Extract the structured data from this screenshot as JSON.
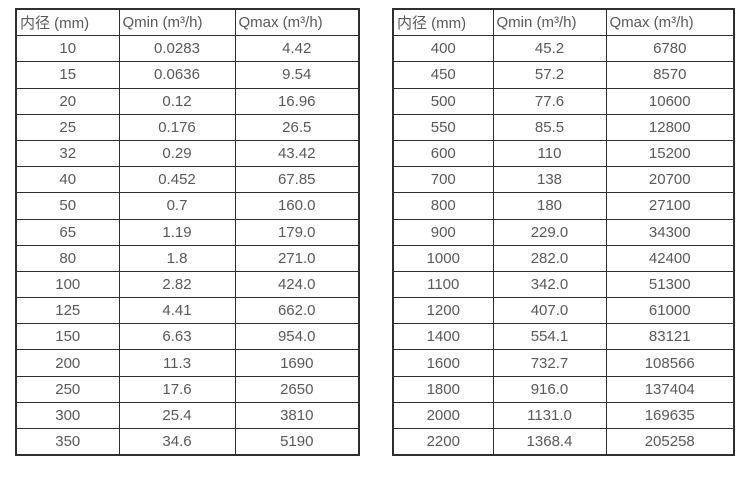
{
  "page": {
    "background": "#ffffff",
    "border_color": "#2f2f2f",
    "text_color": "#595959"
  },
  "tables": [
    {
      "name": "flow-spec-table-small-diameters",
      "columns": [
        "内径 (mm)",
        "Qmin (m³/h)",
        "Qmax (m³/h)"
      ],
      "rows": [
        [
          "10",
          "0.0283",
          "4.42"
        ],
        [
          "15",
          "0.0636",
          "9.54"
        ],
        [
          "20",
          "0.12",
          "16.96"
        ],
        [
          "25",
          "0.176",
          "26.5"
        ],
        [
          "32",
          "0.29",
          "43.42"
        ],
        [
          "40",
          "0.452",
          "67.85"
        ],
        [
          "50",
          "0.7",
          "160.0"
        ],
        [
          "65",
          "1.19",
          "179.0"
        ],
        [
          "80",
          "1.8",
          "271.0"
        ],
        [
          "100",
          "2.82",
          "424.0"
        ],
        [
          "125",
          "4.41",
          "662.0"
        ],
        [
          "150",
          "6.63",
          "954.0"
        ],
        [
          "200",
          "11.3",
          "1690"
        ],
        [
          "250",
          "17.6",
          "2650"
        ],
        [
          "300",
          "25.4",
          "3810"
        ],
        [
          "350",
          "34.6",
          "5190"
        ]
      ]
    },
    {
      "name": "flow-spec-table-large-diameters",
      "columns": [
        "内径 (mm)",
        "Qmin (m³/h)",
        "Qmax (m³/h)"
      ],
      "rows": [
        [
          "400",
          "45.2",
          "6780"
        ],
        [
          "450",
          "57.2",
          "8570"
        ],
        [
          "500",
          "77.6",
          "10600"
        ],
        [
          "550",
          "85.5",
          "12800"
        ],
        [
          "600",
          "110",
          "15200"
        ],
        [
          "700",
          "138",
          "20700"
        ],
        [
          "800",
          "180",
          "27100"
        ],
        [
          "900",
          "229.0",
          "34300"
        ],
        [
          "1000",
          "282.0",
          "42400"
        ],
        [
          "1100",
          "342.0",
          "51300"
        ],
        [
          "1200",
          "407.0",
          "61000"
        ],
        [
          "1400",
          "554.1",
          "83121"
        ],
        [
          "1600",
          "732.7",
          "108566"
        ],
        [
          "1800",
          "916.0",
          "137404"
        ],
        [
          "2000",
          "1131.0",
          "169635"
        ],
        [
          "2200",
          "1368.4",
          "205258"
        ]
      ]
    }
  ]
}
